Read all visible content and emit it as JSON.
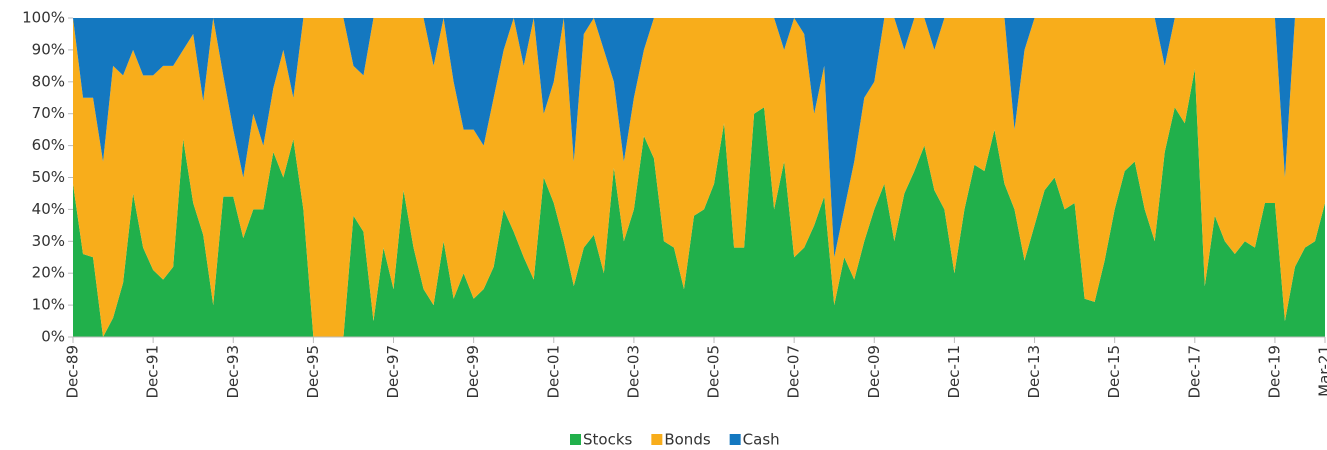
{
  "chart_data": {
    "type": "stacked-area",
    "categories": [
      "Dec-89",
      null,
      null,
      null,
      null,
      null,
      null,
      null,
      "Dec-91",
      null,
      null,
      null,
      null,
      null,
      null,
      null,
      "Dec-93",
      null,
      null,
      null,
      null,
      null,
      null,
      null,
      "Dec-95",
      null,
      null,
      null,
      null,
      null,
      null,
      null,
      "Dec-97",
      null,
      null,
      null,
      null,
      null,
      null,
      null,
      "Dec-99",
      null,
      null,
      null,
      null,
      null,
      null,
      null,
      "Dec-01",
      null,
      null,
      null,
      null,
      null,
      null,
      null,
      "Dec-03",
      null,
      null,
      null,
      null,
      null,
      null,
      null,
      "Dec-05",
      null,
      null,
      null,
      null,
      null,
      null,
      null,
      "Dec-07",
      null,
      null,
      null,
      null,
      null,
      null,
      null,
      "Dec-09",
      null,
      null,
      null,
      null,
      null,
      null,
      null,
      "Dec-11",
      null,
      null,
      null,
      null,
      null,
      null,
      null,
      "Dec-13",
      null,
      null,
      null,
      null,
      null,
      null,
      null,
      "Dec-15",
      null,
      null,
      null,
      null,
      null,
      null,
      null,
      "Dec-17",
      null,
      null,
      null,
      null,
      null,
      null,
      null,
      "Dec-19",
      null,
      null,
      null,
      null,
      "Mar-21"
    ],
    "series": [
      {
        "name": "Stocks",
        "color": "#21b04b",
        "values": [
          48,
          26,
          25,
          0,
          6,
          17,
          45,
          28,
          21,
          18,
          22,
          62,
          42,
          32,
          10,
          44,
          44,
          31,
          40,
          40,
          58,
          50,
          62,
          40,
          0,
          0,
          0,
          0,
          38,
          33,
          5,
          28,
          15,
          46,
          28,
          15,
          10,
          30,
          12,
          20,
          12,
          15,
          22,
          40,
          33,
          25,
          18,
          50,
          42,
          30,
          16,
          28,
          32,
          20,
          53,
          30,
          40,
          63,
          56,
          30,
          28,
          15,
          38,
          40,
          48,
          67,
          28,
          28,
          70,
          72,
          40,
          55,
          25,
          28,
          35,
          44,
          10,
          25,
          18,
          30,
          40,
          48,
          30,
          45,
          52,
          60,
          46,
          40,
          20,
          40,
          54,
          52,
          65,
          48,
          40,
          24,
          35,
          46,
          50,
          40,
          42,
          12,
          11,
          24,
          40,
          52,
          55,
          40,
          30,
          58,
          72,
          67,
          84,
          16,
          38,
          30,
          26,
          30,
          28,
          42,
          42,
          5,
          22,
          28,
          30,
          42
        ]
      },
      {
        "name": "Bonds",
        "color": "#f8ad1b",
        "values": [
          52,
          49,
          50,
          55,
          79,
          65,
          45,
          54,
          61,
          67,
          63,
          28,
          53,
          42,
          90,
          38,
          21,
          19,
          30,
          20,
          20,
          40,
          13,
          60,
          100,
          100,
          100,
          100,
          47,
          49,
          95,
          72,
          85,
          54,
          72,
          85,
          75,
          70,
          68,
          45,
          53,
          45,
          53,
          50,
          67,
          60,
          82,
          20,
          38,
          70,
          39,
          67,
          68,
          70,
          27,
          25,
          35,
          27,
          44,
          70,
          72,
          85,
          62,
          60,
          52,
          33,
          72,
          72,
          30,
          28,
          60,
          35,
          75,
          67,
          35,
          41,
          15,
          15,
          37,
          45,
          40,
          52,
          70,
          45,
          48,
          40,
          44,
          60,
          80,
          60,
          46,
          48,
          35,
          52,
          25,
          66,
          65,
          54,
          50,
          60,
          58,
          88,
          89,
          76,
          60,
          48,
          45,
          60,
          70,
          27,
          28,
          33,
          16,
          84,
          62,
          70,
          74,
          70,
          72,
          58,
          58,
          45,
          78,
          72,
          70,
          58
        ]
      },
      {
        "name": "Cash",
        "color": "#1478c0",
        "values": [
          0,
          25,
          25,
          45,
          15,
          18,
          10,
          18,
          18,
          15,
          15,
          10,
          5,
          26,
          0,
          18,
          35,
          50,
          30,
          40,
          22,
          10,
          25,
          0,
          0,
          0,
          0,
          0,
          15,
          18,
          0,
          0,
          0,
          0,
          0,
          0,
          15,
          0,
          20,
          35,
          35,
          40,
          25,
          10,
          0,
          15,
          0,
          30,
          20,
          0,
          45,
          5,
          0,
          10,
          20,
          45,
          25,
          10,
          0,
          0,
          0,
          0,
          0,
          0,
          0,
          0,
          0,
          0,
          0,
          0,
          0,
          10,
          0,
          5,
          30,
          15,
          75,
          60,
          45,
          25,
          20,
          0,
          0,
          10,
          0,
          0,
          10,
          0,
          0,
          0,
          0,
          0,
          0,
          0,
          35,
          10,
          0,
          0,
          0,
          0,
          0,
          0,
          0,
          0,
          0,
          0,
          0,
          0,
          0,
          15,
          0,
          0,
          0,
          0,
          0,
          0,
          0,
          0,
          0,
          0,
          0,
          50,
          0,
          0,
          0,
          0
        ]
      }
    ],
    "ylim": [
      0,
      100
    ],
    "yticks": [
      {
        "value": 0,
        "label": "0%"
      },
      {
        "value": 10,
        "label": "10%"
      },
      {
        "value": 20,
        "label": "20%"
      },
      {
        "value": 30,
        "label": "30%"
      },
      {
        "value": 40,
        "label": "40%"
      },
      {
        "value": 50,
        "label": "50%"
      },
      {
        "value": 60,
        "label": "60%"
      },
      {
        "value": 70,
        "label": "70%"
      },
      {
        "value": 80,
        "label": "80%"
      },
      {
        "value": 90,
        "label": "90%"
      },
      {
        "value": 100,
        "label": "100%"
      }
    ],
    "legend": "bottom"
  }
}
